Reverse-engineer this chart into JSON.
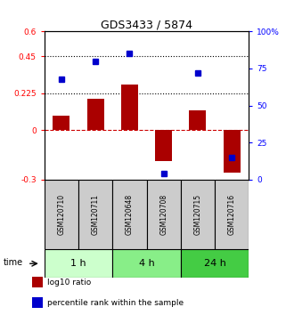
{
  "title": "GDS3433 / 5874",
  "samples": [
    "GSM120710",
    "GSM120711",
    "GSM120648",
    "GSM120708",
    "GSM120715",
    "GSM120716"
  ],
  "log10_ratio": [
    0.09,
    0.19,
    0.28,
    -0.19,
    0.12,
    -0.26
  ],
  "percentile_rank": [
    68,
    80,
    85,
    4,
    72,
    15
  ],
  "time_groups": [
    {
      "label": "1 h",
      "cols": [
        0,
        1
      ],
      "color": "#ccffcc"
    },
    {
      "label": "4 h",
      "cols": [
        2,
        3
      ],
      "color": "#88ee88"
    },
    {
      "label": "24 h",
      "cols": [
        4,
        5
      ],
      "color": "#44cc44"
    }
  ],
  "bar_color": "#aa0000",
  "dot_color": "#0000cc",
  "ylim_left": [
    -0.3,
    0.6
  ],
  "ylim_right": [
    0,
    100
  ],
  "yticks_left": [
    -0.3,
    0,
    0.225,
    0.45,
    0.6
  ],
  "ytick_labels_left": [
    "-0.3",
    "0",
    "0.225",
    "0.45",
    "0.6"
  ],
  "yticks_right": [
    0,
    25,
    50,
    75,
    100
  ],
  "ytick_labels_right": [
    "0",
    "25",
    "50",
    "75",
    "100%"
  ],
  "hlines": [
    0.45,
    0.225
  ],
  "bar_width": 0.5,
  "sample_box_color": "#cccccc",
  "legend_items": [
    {
      "label": "log10 ratio",
      "color": "#aa0000"
    },
    {
      "label": "percentile rank within the sample",
      "color": "#0000cc"
    }
  ],
  "bg_color": "#ffffff"
}
